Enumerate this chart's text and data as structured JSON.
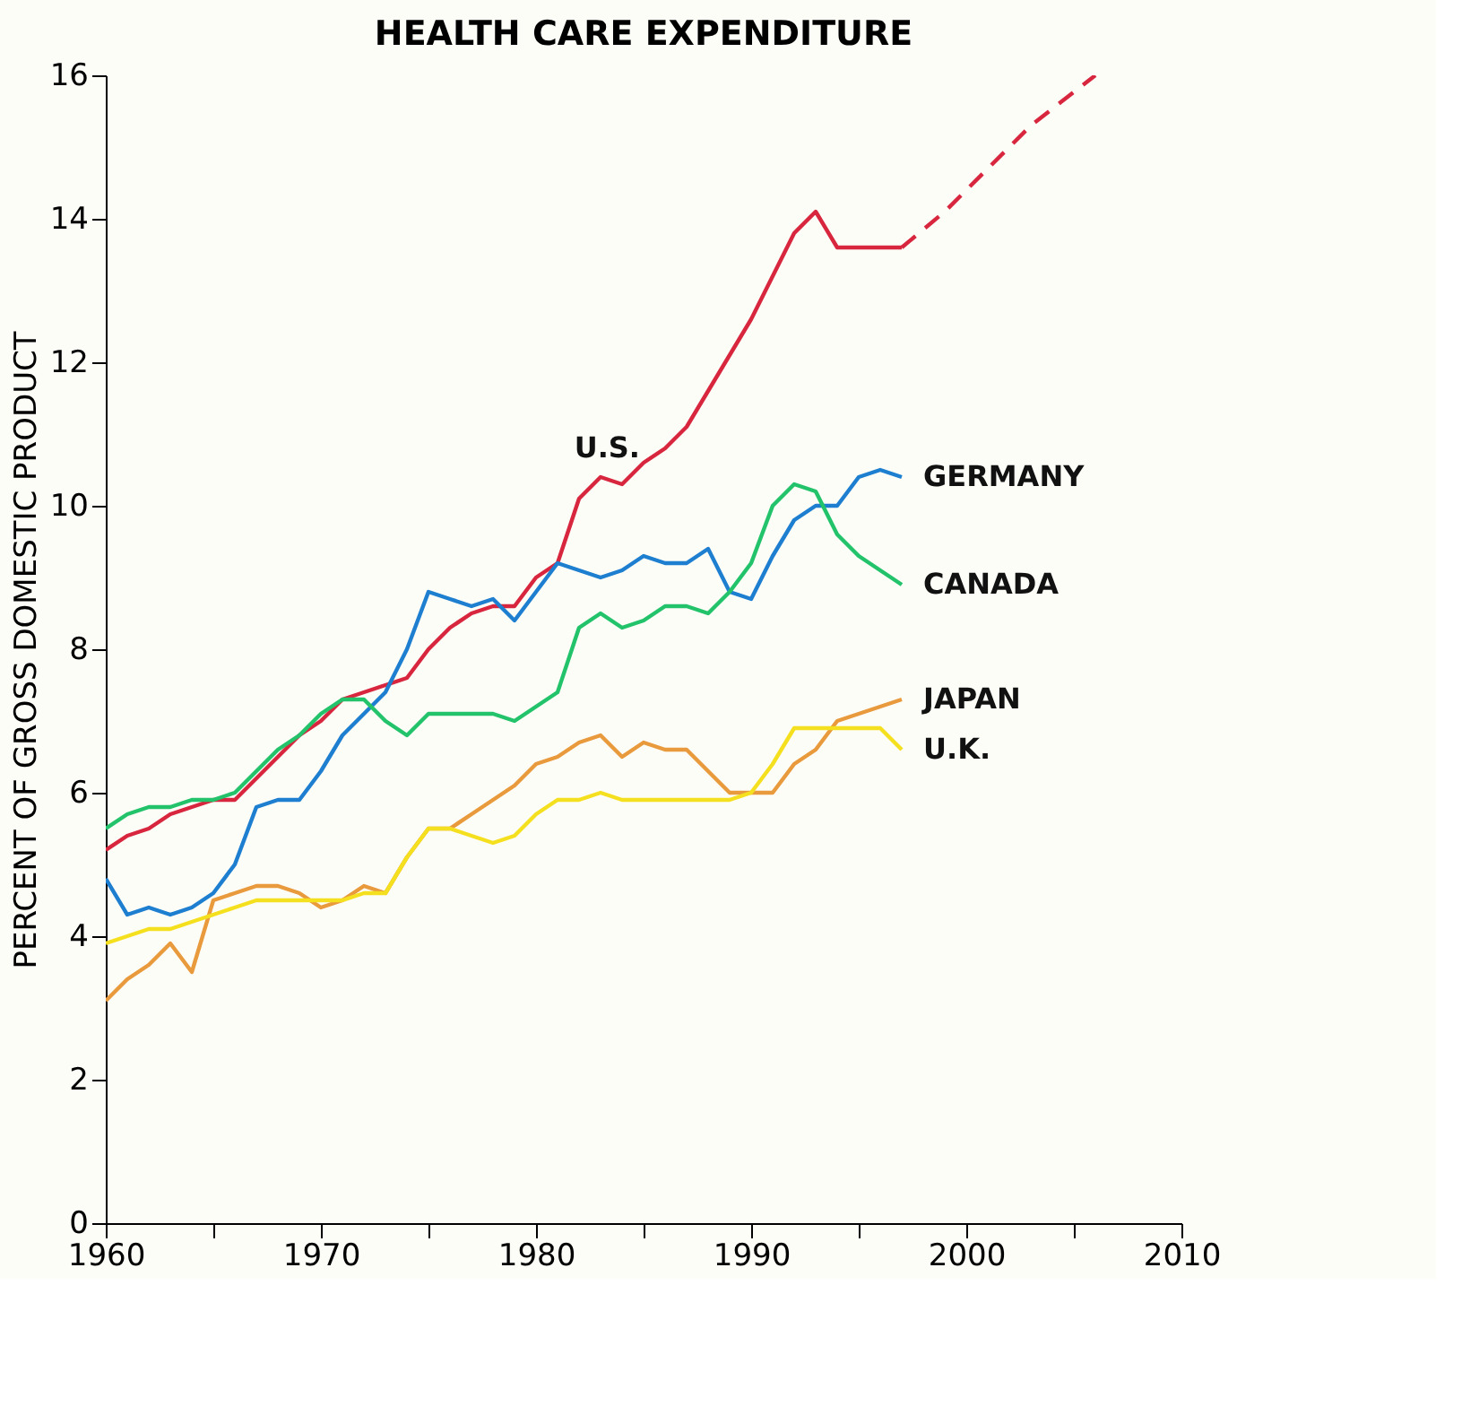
{
  "chart_data": {
    "type": "line",
    "title": "HEALTH CARE EXPENDITURE",
    "ylabel": "PERCENT OF GROSS DOMESTIC PRODUCT",
    "x": [
      1960,
      1961,
      1962,
      1963,
      1964,
      1965,
      1966,
      1967,
      1968,
      1969,
      1970,
      1971,
      1972,
      1973,
      1974,
      1975,
      1976,
      1977,
      1978,
      1979,
      1980,
      1981,
      1982,
      1983,
      1984,
      1985,
      1986,
      1987,
      1988,
      1989,
      1990,
      1991,
      1992,
      1993,
      1994,
      1995,
      1996,
      1997
    ],
    "series": [
      {
        "name": "U.S.",
        "color": "#d7263d",
        "values": [
          5.2,
          5.4,
          5.5,
          5.7,
          5.8,
          5.9,
          5.9,
          6.2,
          6.5,
          6.8,
          7.0,
          7.3,
          7.4,
          7.5,
          7.6,
          8.0,
          8.3,
          8.5,
          8.6,
          8.6,
          9.0,
          9.2,
          10.1,
          10.4,
          10.3,
          10.6,
          10.8,
          11.1,
          11.6,
          12.1,
          12.6,
          13.2,
          13.8,
          14.1,
          13.6,
          13.6,
          13.6,
          13.6
        ]
      },
      {
        "color": "#d7263d",
        "line_style": "dashed",
        "x": [
          1997,
          1999,
          2001,
          2003,
          2006
        ],
        "values": [
          13.6,
          14.1,
          14.7,
          15.3,
          16.0
        ]
      },
      {
        "name": "GERMANY",
        "color": "#1e7fd0",
        "values": [
          4.8,
          4.3,
          4.4,
          4.3,
          4.4,
          4.6,
          5.0,
          5.8,
          5.9,
          5.9,
          6.3,
          6.8,
          7.1,
          7.4,
          8.0,
          8.8,
          8.7,
          8.6,
          8.7,
          8.4,
          8.8,
          9.2,
          9.1,
          9.0,
          9.1,
          9.3,
          9.2,
          9.2,
          9.4,
          8.8,
          8.7,
          9.3,
          9.8,
          10.0,
          10.0,
          10.4,
          10.5,
          10.4
        ]
      },
      {
        "name": "CANADA",
        "color": "#22c36a",
        "values": [
          5.5,
          5.7,
          5.8,
          5.8,
          5.9,
          5.9,
          6.0,
          6.3,
          6.6,
          6.8,
          7.1,
          7.3,
          7.3,
          7.0,
          6.8,
          7.1,
          7.1,
          7.1,
          7.1,
          7.0,
          7.2,
          7.4,
          8.3,
          8.5,
          8.3,
          8.4,
          8.6,
          8.6,
          8.5,
          8.8,
          9.2,
          10.0,
          10.3,
          10.2,
          9.6,
          9.3,
          9.1,
          8.9
        ]
      },
      {
        "name": "JAPAN",
        "color": "#e89a3c",
        "values": [
          3.1,
          3.4,
          3.6,
          3.9,
          3.5,
          4.5,
          4.6,
          4.7,
          4.7,
          4.6,
          4.4,
          4.5,
          4.7,
          4.6,
          5.1,
          5.5,
          5.5,
          5.7,
          5.9,
          6.1,
          6.4,
          6.5,
          6.7,
          6.8,
          6.5,
          6.7,
          6.6,
          6.6,
          6.3,
          6.0,
          6.0,
          6.0,
          6.4,
          6.6,
          7.0,
          7.1,
          7.2,
          7.3
        ]
      },
      {
        "name": "U.K.",
        "color": "#f5e020",
        "values": [
          3.9,
          4.0,
          4.1,
          4.1,
          4.2,
          4.3,
          4.4,
          4.5,
          4.5,
          4.5,
          4.5,
          4.5,
          4.6,
          4.6,
          5.1,
          5.5,
          5.5,
          5.4,
          5.3,
          5.4,
          5.7,
          5.9,
          5.9,
          6.0,
          5.9,
          5.9,
          5.9,
          5.9,
          5.9,
          5.9,
          6.0,
          6.4,
          6.9,
          6.9,
          6.9,
          6.9,
          6.9,
          6.6
        ]
      }
    ],
    "xlim": [
      1960,
      2010
    ],
    "xticks": [
      1960,
      {
        "value": 1965,
        "label": null
      },
      1970,
      {
        "value": 1975,
        "label": null
      },
      1980,
      {
        "value": 1985,
        "label": null
      },
      1990,
      {
        "value": 1995,
        "label": null
      },
      2000,
      {
        "value": 2005,
        "label": null
      },
      2010
    ],
    "ylim": [
      0,
      16
    ],
    "yticks": [
      0,
      2,
      4,
      6,
      8,
      10,
      12,
      14,
      16
    ],
    "grid": false,
    "line_style": "solid",
    "marker": "none"
  }
}
